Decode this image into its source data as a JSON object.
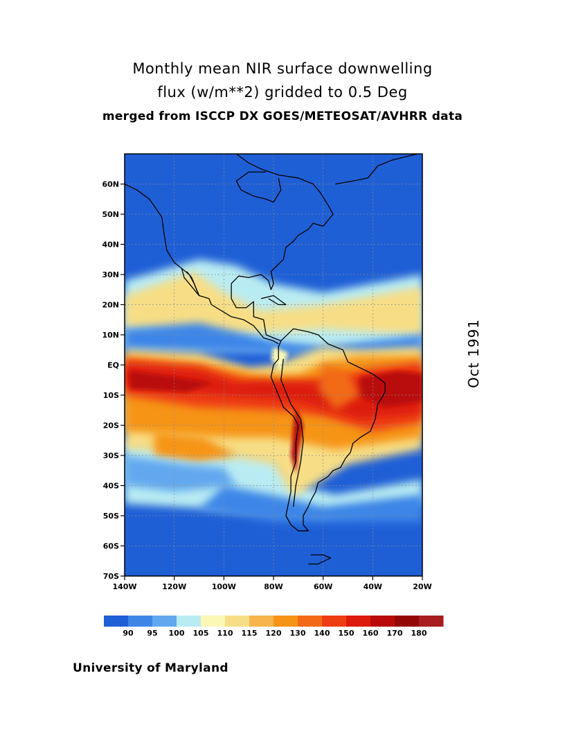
{
  "title": {
    "line1": "Monthly mean NIR surface downwelling",
    "line2": "flux (w/m**2) gridded to 0.5 Deg",
    "line3": "merged from ISCCP DX GOES/METEOSAT/AVHRR data"
  },
  "date_label": "Oct 1991",
  "credit": "University of Maryland",
  "map": {
    "lon_range": [
      -140,
      -20
    ],
    "lat_range": [
      -70,
      70
    ],
    "lat_ticks": [
      {
        "value": 60,
        "label": "60N"
      },
      {
        "value": 50,
        "label": "50N"
      },
      {
        "value": 40,
        "label": "40N"
      },
      {
        "value": 30,
        "label": "30N"
      },
      {
        "value": 20,
        "label": "20N"
      },
      {
        "value": 10,
        "label": "10N"
      },
      {
        "value": 0,
        "label": "EQ"
      },
      {
        "value": -10,
        "label": "10S"
      },
      {
        "value": -20,
        "label": "20S"
      },
      {
        "value": -30,
        "label": "30S"
      },
      {
        "value": -40,
        "label": "40S"
      },
      {
        "value": -50,
        "label": "50S"
      },
      {
        "value": -60,
        "label": "60S"
      },
      {
        "value": -70,
        "label": "70S"
      }
    ],
    "lon_ticks": [
      {
        "value": -140,
        "label": "140W"
      },
      {
        "value": -120,
        "label": "120W"
      },
      {
        "value": -100,
        "label": "100W"
      },
      {
        "value": -80,
        "label": "80W"
      },
      {
        "value": -60,
        "label": "60W"
      },
      {
        "value": -40,
        "label": "40W"
      },
      {
        "value": -20,
        "label": "20W"
      }
    ],
    "grid": true,
    "coastlines": true
  },
  "colorbar": {
    "labels": [
      "90",
      "95",
      "100",
      "105",
      "110",
      "115",
      "120",
      "130",
      "140",
      "150",
      "160",
      "170",
      "180"
    ],
    "colors": [
      "#1f5fd6",
      "#3d86e8",
      "#62a8ef",
      "#b9ecf2",
      "#fbf7b5",
      "#f7de86",
      "#f6b44a",
      "#f69418",
      "#f26a17",
      "#ef3d13",
      "#dc1b0b",
      "#b90a08",
      "#940707",
      "#a81e1e"
    ]
  },
  "chart_data": {
    "type": "heatmap",
    "variable": "Monthly mean NIR surface downwelling flux (w/m**2)",
    "units": "w/m**2",
    "x_range": [
      -140,
      -20
    ],
    "y_range": [
      -70,
      70
    ],
    "field_zones": [
      {
        "lat_band": [
          30,
          70
        ],
        "value_approx": 90
      },
      {
        "lat_band": [
          10,
          30
        ],
        "value_approx": 115
      },
      {
        "lat_band": [
          -5,
          5
        ],
        "value_approx": 140
      },
      {
        "lat_band": [
          -15,
          -5
        ],
        "value_approx": 160
      },
      {
        "lat_band": [
          -30,
          -15
        ],
        "value_approx": 140
      },
      {
        "lat_band": [
          -45,
          -30
        ],
        "value_approx": 100
      },
      {
        "lat_band": [
          -70,
          -45
        ],
        "value_approx": 90
      }
    ]
  }
}
